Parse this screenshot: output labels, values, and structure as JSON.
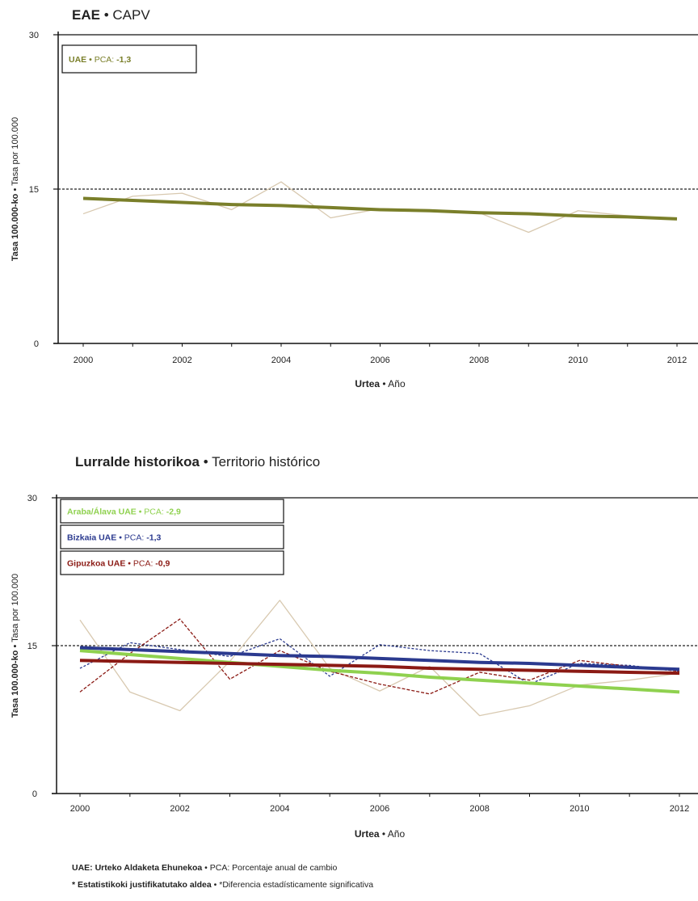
{
  "colors": {
    "araba": "#8fd14f",
    "araba_thin": "#d8c9b0",
    "bizkaia": "#2b3a8f",
    "gipuzkoa": "#8b1a14",
    "eae": "#7a7f2a",
    "eae_thin": "#d8c9b0",
    "reference": "#222222",
    "axis": "#111111"
  },
  "titles": {
    "chart1_bold": "EAE",
    "chart1_rest": "CAPV",
    "chart2_bold": "Lurralde historikoa",
    "chart2_rest": "Territorio histórico"
  },
  "footnotes": {
    "line1_bold": "UAE: Urteko Aldaketa Ehunekoa",
    "line1_rest": "PCA: Porcentaje anual de cambio",
    "line2_bold": "* Estatistikoki justifikatutako aldea",
    "line2_rest": "*Diferencia estadísticamente significativa"
  },
  "chart_data": [
    {
      "type": "line",
      "title": "EAE • CAPV",
      "xlabel_bold": "Urtea",
      "xlabel_rest": "Año",
      "ylabel_bold": "Tasa 100.000-ko",
      "ylabel_rest": "Tasa por 100.000",
      "x": [
        2000,
        2001,
        2002,
        2003,
        2004,
        2005,
        2006,
        2007,
        2008,
        2009,
        2010,
        2011,
        2012
      ],
      "xticks": [
        2000,
        2002,
        2004,
        2006,
        2008,
        2010,
        2012
      ],
      "yticks": [
        0,
        15,
        30
      ],
      "xlim": [
        2000,
        2012
      ],
      "ylim": [
        0,
        30
      ],
      "reference_line": 15,
      "legend": [
        {
          "bold": "UAE",
          "rest": "PCA:",
          "value": "-1,3",
          "color_key": "eae"
        }
      ],
      "series": [
        {
          "role": "observed",
          "values": [
            12.6,
            14.3,
            14.6,
            13.0,
            15.7,
            12.2,
            13.1,
            13.0,
            12.7,
            10.8,
            12.9,
            12.4,
            12.1
          ],
          "color_key": "eae_thin"
        },
        {
          "role": "trend",
          "values": [
            14.1,
            13.9,
            13.7,
            13.5,
            13.4,
            13.2,
            13.0,
            12.9,
            12.7,
            12.6,
            12.4,
            12.3,
            12.1
          ],
          "color_key": "eae"
        }
      ]
    },
    {
      "type": "line",
      "title": "Lurralde historikoa • Territorio histórico",
      "xlabel_bold": "Urtea",
      "xlabel_rest": "Año",
      "ylabel_bold": "Tasa 100.000-ko",
      "ylabel_rest": "Tasa por 100.000",
      "x": [
        2000,
        2001,
        2002,
        2003,
        2004,
        2005,
        2006,
        2007,
        2008,
        2009,
        2010,
        2011,
        2012
      ],
      "xticks": [
        2000,
        2002,
        2004,
        2006,
        2008,
        2010,
        2012
      ],
      "yticks": [
        0,
        15,
        30
      ],
      "xlim": [
        2000,
        2012
      ],
      "ylim": [
        0,
        30
      ],
      "reference_line": 15,
      "legend": [
        {
          "bold": "Araba/Álava UAE",
          "rest": "PCA:",
          "value": "-2,9",
          "color_key": "araba"
        },
        {
          "bold": "Bizkaia UAE",
          "rest": "PCA:",
          "value": "-1,3",
          "color_key": "bizkaia"
        },
        {
          "bold": "Gipuzkoa UAE",
          "rest": "PCA:",
          "value": "-0,9",
          "color_key": "gipuzkoa"
        }
      ],
      "series": [
        {
          "role": "observed",
          "values": [
            17.6,
            10.3,
            8.4,
            13.4,
            19.6,
            12.7,
            10.4,
            12.9,
            7.9,
            8.9,
            11.0,
            11.5,
            12.2
          ],
          "color_key": "araba_thin",
          "dash": ""
        },
        {
          "role": "observed",
          "values": [
            12.7,
            15.3,
            14.6,
            13.9,
            15.7,
            11.9,
            15.1,
            14.5,
            14.2,
            11.1,
            13.2,
            13.0,
            12.4
          ],
          "color_key": "bizkaia",
          "dash": "3,2"
        },
        {
          "role": "observed",
          "values": [
            10.3,
            14.2,
            17.7,
            11.6,
            14.5,
            12.4,
            11.1,
            10.1,
            12.3,
            11.5,
            13.5,
            12.9,
            12.4
          ],
          "color_key": "gipuzkoa",
          "dash": "4,2"
        },
        {
          "role": "trend",
          "values": [
            14.5,
            14.1,
            13.7,
            13.3,
            12.9,
            12.5,
            12.2,
            11.8,
            11.5,
            11.2,
            10.9,
            10.6,
            10.3
          ],
          "color_key": "araba"
        },
        {
          "role": "trend",
          "values": [
            14.8,
            14.6,
            14.4,
            14.2,
            14.0,
            13.9,
            13.7,
            13.5,
            13.3,
            13.2,
            13.0,
            12.8,
            12.6
          ],
          "color_key": "bizkaia"
        },
        {
          "role": "trend",
          "values": [
            13.5,
            13.4,
            13.3,
            13.2,
            13.1,
            13.0,
            12.9,
            12.7,
            12.6,
            12.5,
            12.4,
            12.3,
            12.2
          ],
          "color_key": "gipuzkoa"
        }
      ]
    }
  ]
}
